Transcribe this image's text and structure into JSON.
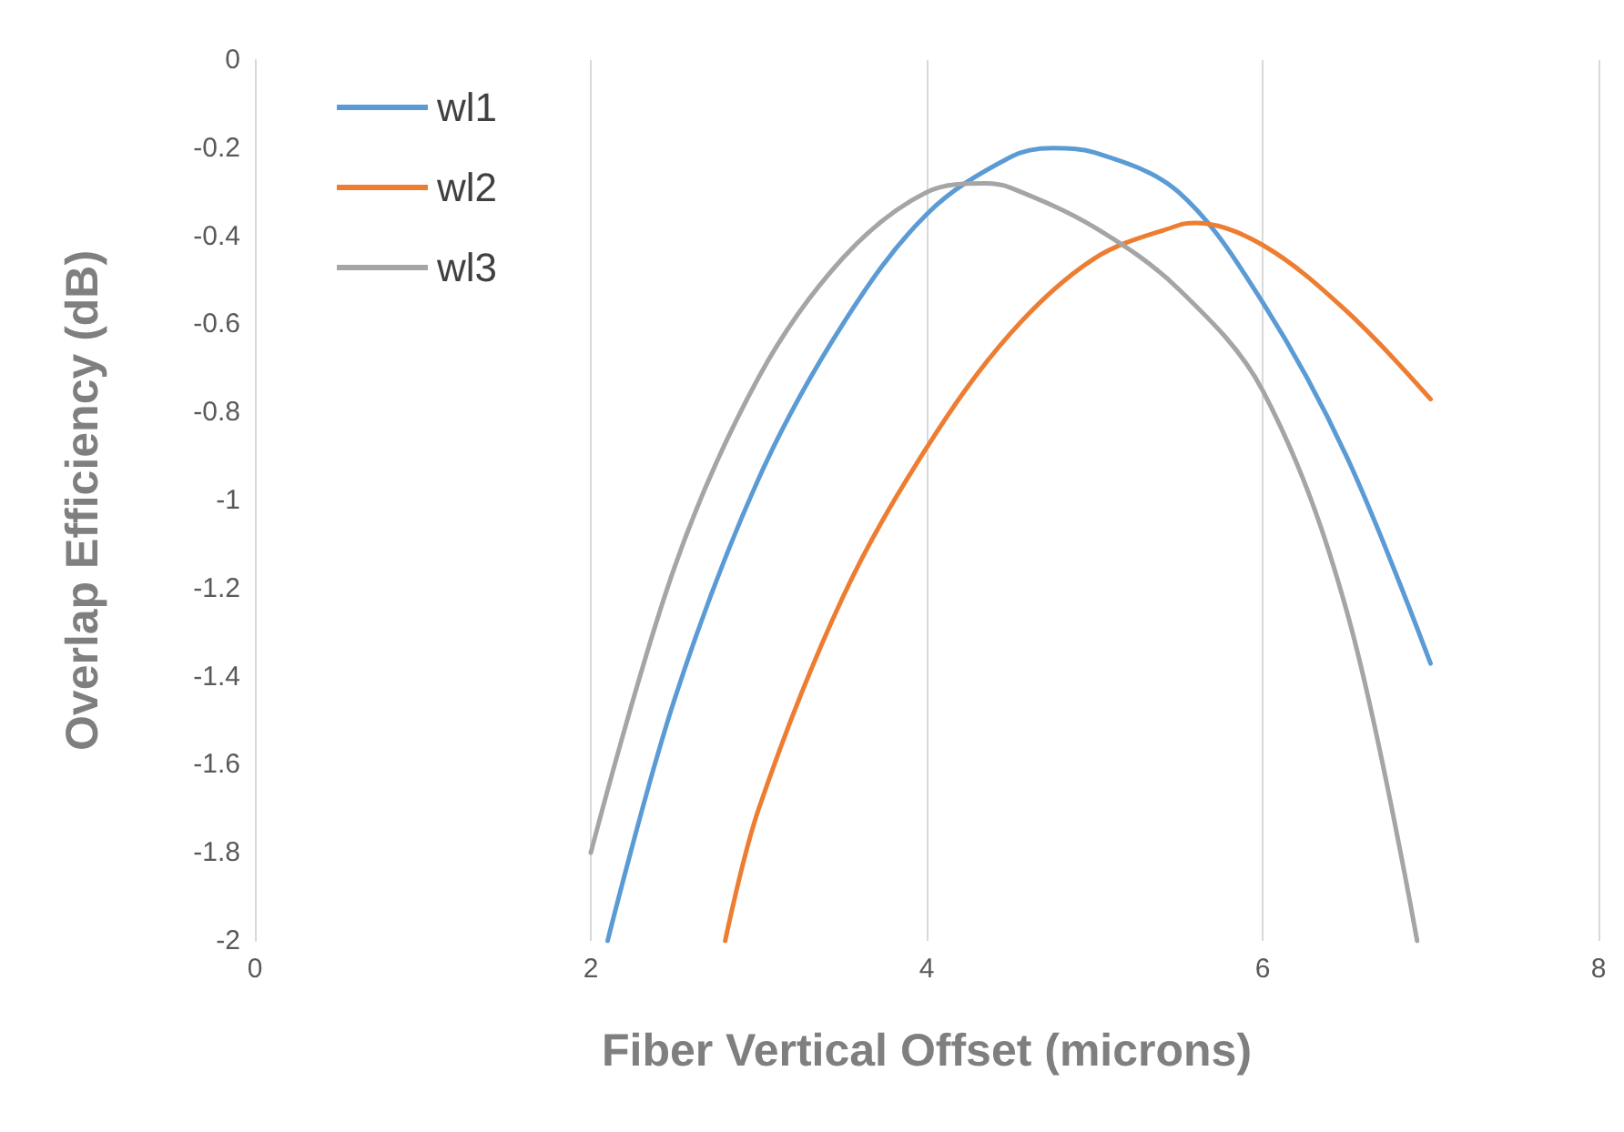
{
  "chart_data": {
    "type": "line",
    "xlabel": "Fiber Vertical Offset (microns)",
    "ylabel": "Overlap Efficiency (dB)",
    "xlim": [
      0,
      8
    ],
    "xticks": [
      0,
      2,
      4,
      6,
      8
    ],
    "ylim": [
      -2,
      0
    ],
    "yticks": [
      -2,
      -1.8,
      -1.6,
      -1.4,
      -1.2,
      -1,
      -0.8,
      -0.6,
      -0.4,
      -0.2,
      0
    ],
    "grid": "x",
    "legend": "top left",
    "marker": "none",
    "line_style": "solid",
    "series": [
      {
        "name": "wl1",
        "color": "#5b9bd5",
        "x": [
          2.1,
          2.5,
          3,
          3.5,
          4,
          4.5,
          4.75,
          5,
          5.5,
          6,
          6.5,
          7
        ],
        "values": [
          -2.0,
          -1.45,
          -0.95,
          -0.6,
          -0.35,
          -0.22,
          -0.2,
          -0.21,
          -0.3,
          -0.55,
          -0.9,
          -1.37
        ]
      },
      {
        "name": "wl2",
        "color": "#ed7d31",
        "x": [
          2.8,
          3,
          3.5,
          4,
          4.5,
          5,
          5.5,
          5.6,
          6,
          6.5,
          7
        ],
        "values": [
          -2.0,
          -1.7,
          -1.22,
          -0.88,
          -0.62,
          -0.45,
          -0.375,
          -0.37,
          -0.42,
          -0.57,
          -0.77
        ]
      },
      {
        "name": "wl3",
        "color": "#a5a5a5",
        "x": [
          2,
          2.5,
          3,
          3.5,
          4,
          4.35,
          4.5,
          5,
          5.5,
          6,
          6.5,
          6.92
        ],
        "values": [
          -1.8,
          -1.15,
          -0.72,
          -0.45,
          -0.3,
          -0.28,
          -0.29,
          -0.38,
          -0.52,
          -0.75,
          -1.25,
          -2.0
        ]
      }
    ]
  }
}
